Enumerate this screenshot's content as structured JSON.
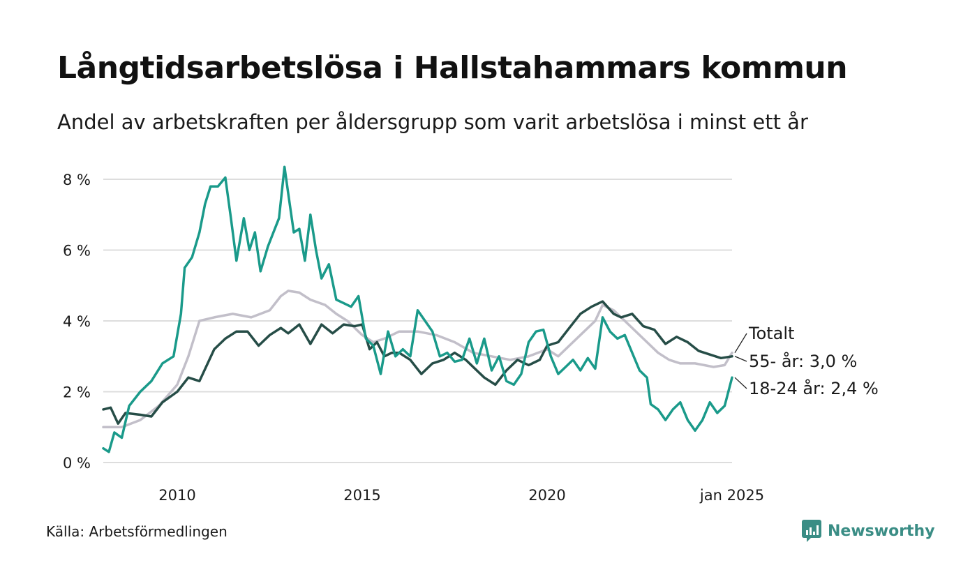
{
  "header": {
    "title": "Långtidsarbetslösa i Hallstahammars kommun",
    "subtitle": "Andel av arbetskraften per åldersgrupp som varit arbetslösa i minst ett år"
  },
  "footer": {
    "source": "Källa: Arbetsförmedlingen",
    "brand": "Newsworthy"
  },
  "colors": {
    "young": "#1a9a8a",
    "old": "#264d47",
    "total": "#c2bfc9",
    "grid": "#dddddd",
    "brand": "#3a8d85"
  },
  "chart_data": {
    "type": "line",
    "title": "Långtidsarbetslösa i Hallstahammars kommun",
    "subtitle": "Andel av arbetskraften per åldersgrupp som varit arbetslösa i minst ett år",
    "xlabel": "",
    "ylabel": "",
    "xlim": [
      2008,
      2025
    ],
    "ylim": [
      0,
      8.5
    ],
    "x_ticks": [
      2010,
      2015,
      2020,
      2025
    ],
    "x_tick_labels": [
      "2010",
      "2015",
      "2020",
      "jan 2025"
    ],
    "y_ticks": [
      0,
      2,
      4,
      6,
      8
    ],
    "y_tick_labels": [
      "0 %",
      "2 %",
      "4 %",
      "6 %",
      "8 %"
    ],
    "grid": true,
    "series": [
      {
        "name": "Totalt",
        "key": "total",
        "label": "Totalt",
        "points": [
          [
            2008.0,
            1.0
          ],
          [
            2008.5,
            1.0
          ],
          [
            2009.0,
            1.2
          ],
          [
            2009.5,
            1.6
          ],
          [
            2010.0,
            2.2
          ],
          [
            2010.3,
            3.0
          ],
          [
            2010.6,
            4.0
          ],
          [
            2011.0,
            4.1
          ],
          [
            2011.5,
            4.2
          ],
          [
            2012.0,
            4.1
          ],
          [
            2012.5,
            4.3
          ],
          [
            2012.8,
            4.7
          ],
          [
            2013.0,
            4.85
          ],
          [
            2013.3,
            4.8
          ],
          [
            2013.6,
            4.6
          ],
          [
            2014.0,
            4.45
          ],
          [
            2014.3,
            4.2
          ],
          [
            2014.6,
            4.0
          ],
          [
            2015.0,
            3.6
          ],
          [
            2015.3,
            3.4
          ],
          [
            2015.6,
            3.5
          ],
          [
            2016.0,
            3.7
          ],
          [
            2016.5,
            3.7
          ],
          [
            2017.0,
            3.6
          ],
          [
            2017.5,
            3.4
          ],
          [
            2018.0,
            3.1
          ],
          [
            2018.5,
            3.0
          ],
          [
            2019.0,
            2.9
          ],
          [
            2019.5,
            3.0
          ],
          [
            2020.0,
            3.2
          ],
          [
            2020.3,
            3.0
          ],
          [
            2020.6,
            3.3
          ],
          [
            2021.0,
            3.7
          ],
          [
            2021.3,
            4.0
          ],
          [
            2021.5,
            4.45
          ],
          [
            2021.8,
            4.3
          ],
          [
            2022.0,
            4.1
          ],
          [
            2022.3,
            3.8
          ],
          [
            2022.6,
            3.5
          ],
          [
            2023.0,
            3.1
          ],
          [
            2023.3,
            2.9
          ],
          [
            2023.6,
            2.8
          ],
          [
            2024.0,
            2.8
          ],
          [
            2024.5,
            2.7
          ],
          [
            2024.8,
            2.75
          ],
          [
            2025.0,
            3.1
          ]
        ]
      },
      {
        "name": "55- år",
        "key": "old",
        "label": "55- år: 3,0 %",
        "points": [
          [
            2008.0,
            1.5
          ],
          [
            2008.2,
            1.55
          ],
          [
            2008.4,
            1.1
          ],
          [
            2008.6,
            1.4
          ],
          [
            2009.0,
            1.35
          ],
          [
            2009.3,
            1.3
          ],
          [
            2009.6,
            1.7
          ],
          [
            2010.0,
            2.0
          ],
          [
            2010.3,
            2.4
          ],
          [
            2010.6,
            2.3
          ],
          [
            2011.0,
            3.2
          ],
          [
            2011.3,
            3.5
          ],
          [
            2011.6,
            3.7
          ],
          [
            2011.9,
            3.7
          ],
          [
            2012.2,
            3.3
          ],
          [
            2012.5,
            3.6
          ],
          [
            2012.8,
            3.8
          ],
          [
            2013.0,
            3.65
          ],
          [
            2013.3,
            3.9
          ],
          [
            2013.6,
            3.35
          ],
          [
            2013.9,
            3.9
          ],
          [
            2014.2,
            3.65
          ],
          [
            2014.5,
            3.9
          ],
          [
            2014.8,
            3.85
          ],
          [
            2015.0,
            3.9
          ],
          [
            2015.2,
            3.2
          ],
          [
            2015.4,
            3.4
          ],
          [
            2015.6,
            3.0
          ],
          [
            2015.8,
            3.1
          ],
          [
            2016.0,
            3.1
          ],
          [
            2016.3,
            2.9
          ],
          [
            2016.6,
            2.5
          ],
          [
            2016.9,
            2.8
          ],
          [
            2017.2,
            2.9
          ],
          [
            2017.5,
            3.1
          ],
          [
            2017.8,
            2.9
          ],
          [
            2018.0,
            2.7
          ],
          [
            2018.3,
            2.4
          ],
          [
            2018.6,
            2.2
          ],
          [
            2018.9,
            2.6
          ],
          [
            2019.2,
            2.9
          ],
          [
            2019.5,
            2.75
          ],
          [
            2019.8,
            2.9
          ],
          [
            2020.0,
            3.3
          ],
          [
            2020.3,
            3.4
          ],
          [
            2020.6,
            3.8
          ],
          [
            2020.9,
            4.2
          ],
          [
            2021.2,
            4.4
          ],
          [
            2021.5,
            4.55
          ],
          [
            2021.8,
            4.2
          ],
          [
            2022.0,
            4.1
          ],
          [
            2022.3,
            4.2
          ],
          [
            2022.6,
            3.85
          ],
          [
            2022.9,
            3.75
          ],
          [
            2023.2,
            3.35
          ],
          [
            2023.5,
            3.55
          ],
          [
            2023.8,
            3.4
          ],
          [
            2024.1,
            3.15
          ],
          [
            2024.4,
            3.05
          ],
          [
            2024.7,
            2.95
          ],
          [
            2025.0,
            3.0
          ]
        ]
      },
      {
        "name": "18-24 år",
        "key": "young",
        "label": "18-24 år: 2,4 %",
        "points": [
          [
            2008.0,
            0.4
          ],
          [
            2008.15,
            0.3
          ],
          [
            2008.3,
            0.85
          ],
          [
            2008.5,
            0.7
          ],
          [
            2008.7,
            1.6
          ],
          [
            2009.0,
            2.0
          ],
          [
            2009.3,
            2.3
          ],
          [
            2009.6,
            2.8
          ],
          [
            2009.9,
            3.0
          ],
          [
            2010.1,
            4.2
          ],
          [
            2010.2,
            5.5
          ],
          [
            2010.4,
            5.8
          ],
          [
            2010.6,
            6.5
          ],
          [
            2010.75,
            7.3
          ],
          [
            2010.9,
            7.8
          ],
          [
            2011.1,
            7.8
          ],
          [
            2011.3,
            8.05
          ],
          [
            2011.45,
            6.9
          ],
          [
            2011.6,
            5.7
          ],
          [
            2011.8,
            6.9
          ],
          [
            2011.95,
            6.0
          ],
          [
            2012.1,
            6.5
          ],
          [
            2012.25,
            5.4
          ],
          [
            2012.45,
            6.1
          ],
          [
            2012.6,
            6.5
          ],
          [
            2012.75,
            6.9
          ],
          [
            2012.9,
            8.35
          ],
          [
            2013.0,
            7.6
          ],
          [
            2013.15,
            6.5
          ],
          [
            2013.3,
            6.6
          ],
          [
            2013.45,
            5.7
          ],
          [
            2013.6,
            7.0
          ],
          [
            2013.75,
            6.0
          ],
          [
            2013.9,
            5.2
          ],
          [
            2014.1,
            5.6
          ],
          [
            2014.3,
            4.6
          ],
          [
            2014.5,
            4.5
          ],
          [
            2014.7,
            4.4
          ],
          [
            2014.9,
            4.7
          ],
          [
            2015.1,
            3.5
          ],
          [
            2015.3,
            3.3
          ],
          [
            2015.5,
            2.5
          ],
          [
            2015.7,
            3.7
          ],
          [
            2015.9,
            3.0
          ],
          [
            2016.1,
            3.2
          ],
          [
            2016.3,
            3.0
          ],
          [
            2016.5,
            4.3
          ],
          [
            2016.7,
            4.0
          ],
          [
            2016.9,
            3.7
          ],
          [
            2017.1,
            3.0
          ],
          [
            2017.3,
            3.1
          ],
          [
            2017.5,
            2.85
          ],
          [
            2017.7,
            2.9
          ],
          [
            2017.9,
            3.5
          ],
          [
            2018.1,
            2.8
          ],
          [
            2018.3,
            3.5
          ],
          [
            2018.5,
            2.6
          ],
          [
            2018.7,
            3.0
          ],
          [
            2018.9,
            2.3
          ],
          [
            2019.1,
            2.2
          ],
          [
            2019.3,
            2.5
          ],
          [
            2019.5,
            3.4
          ],
          [
            2019.7,
            3.7
          ],
          [
            2019.9,
            3.75
          ],
          [
            2020.1,
            3.0
          ],
          [
            2020.3,
            2.5
          ],
          [
            2020.5,
            2.7
          ],
          [
            2020.7,
            2.9
          ],
          [
            2020.9,
            2.6
          ],
          [
            2021.1,
            2.95
          ],
          [
            2021.3,
            2.65
          ],
          [
            2021.5,
            4.1
          ],
          [
            2021.7,
            3.7
          ],
          [
            2021.9,
            3.5
          ],
          [
            2022.1,
            3.6
          ],
          [
            2022.3,
            3.1
          ],
          [
            2022.5,
            2.6
          ],
          [
            2022.7,
            2.4
          ],
          [
            2022.8,
            1.65
          ],
          [
            2023.0,
            1.5
          ],
          [
            2023.2,
            1.2
          ],
          [
            2023.4,
            1.5
          ],
          [
            2023.6,
            1.7
          ],
          [
            2023.8,
            1.2
          ],
          [
            2024.0,
            0.9
          ],
          [
            2024.2,
            1.2
          ],
          [
            2024.4,
            1.7
          ],
          [
            2024.6,
            1.4
          ],
          [
            2024.8,
            1.6
          ],
          [
            2025.0,
            2.4
          ]
        ]
      }
    ]
  }
}
